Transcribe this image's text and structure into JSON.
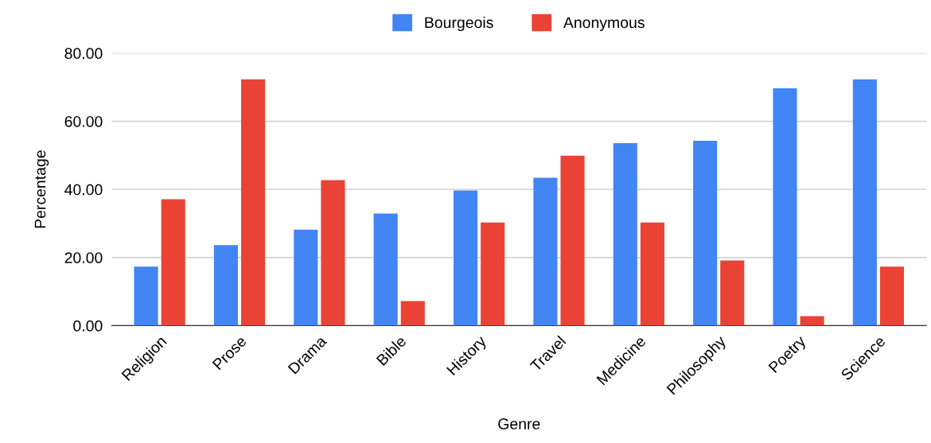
{
  "chart_data": {
    "type": "bar",
    "xlabel": "Genre",
    "ylabel": "Percentage",
    "categories": [
      "Religion",
      "Prose",
      "Drama",
      "Bible",
      "History",
      "Travel",
      "Medicine",
      "Philosophy",
      "Poetry",
      "Science"
    ],
    "series": [
      {
        "name": "Bourgeois",
        "color": "#4285f4",
        "values": [
          17.3,
          23.6,
          28.2,
          32.9,
          39.7,
          43.4,
          53.6,
          54.3,
          69.7,
          72.3
        ]
      },
      {
        "name": "Anonymous",
        "color": "#ea4335",
        "values": [
          37.1,
          72.3,
          42.7,
          7.2,
          30.3,
          49.9,
          30.3,
          19.1,
          2.8,
          17.3
        ]
      }
    ],
    "ylim": [
      0,
      80
    ],
    "yticks": [
      {
        "value": 0,
        "label": "0.00"
      },
      {
        "value": 20,
        "label": "20.00"
      },
      {
        "value": 40,
        "label": "40.00"
      },
      {
        "value": 60,
        "label": "60.00"
      },
      {
        "value": 80,
        "label": "80.00"
      }
    ],
    "grid": "y",
    "legend": "top"
  }
}
